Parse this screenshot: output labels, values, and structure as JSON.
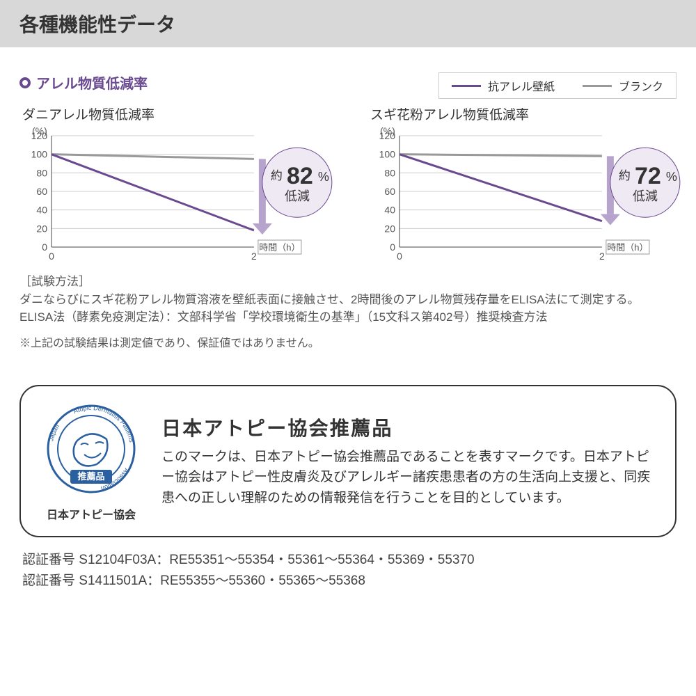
{
  "header": {
    "title": "各種機能性データ"
  },
  "section": {
    "title": "アレル物質低減率",
    "title_color": "#6a4a8f"
  },
  "legend": {
    "series1": {
      "label": "抗アレル壁紙",
      "color": "#6a4a8f"
    },
    "series2": {
      "label": "ブランク",
      "color": "#999999"
    }
  },
  "charts": [
    {
      "title": "ダニアレル物質低減率",
      "y_unit": "(%)",
      "x_unit_label": "時間（h）",
      "ylim": [
        0,
        120
      ],
      "ytick_step": 20,
      "yticks": [
        0,
        20,
        40,
        60,
        80,
        100,
        120
      ],
      "xticks": [
        0,
        2
      ],
      "series": [
        {
          "name": "blank",
          "color": "#999999",
          "points": [
            [
              0,
              100
            ],
            [
              2,
              95
            ]
          ]
        },
        {
          "name": "treated",
          "color": "#6a4a8f",
          "points": [
            [
              0,
              100
            ],
            [
              2,
              18
            ]
          ]
        }
      ],
      "reduction_badge": {
        "prefix": "約",
        "value": "82",
        "unit": "%",
        "sub": "低減",
        "circle_fill": "#efe9f4",
        "circle_stroke": "#6a4a8f",
        "arrow_color": "#b7a4cc"
      },
      "gridline_color": "#cccccc",
      "axis_color": "#444444",
      "tick_fontsize": 14
    },
    {
      "title": "スギ花粉アレル物質低減率",
      "y_unit": "(%)",
      "x_unit_label": "時間（h）",
      "ylim": [
        0,
        120
      ],
      "ytick_step": 20,
      "yticks": [
        0,
        20,
        40,
        60,
        80,
        100,
        120
      ],
      "xticks": [
        0,
        2
      ],
      "series": [
        {
          "name": "blank",
          "color": "#999999",
          "points": [
            [
              0,
              100
            ],
            [
              2,
              98
            ]
          ]
        },
        {
          "name": "treated",
          "color": "#6a4a8f",
          "points": [
            [
              0,
              100
            ],
            [
              2,
              28
            ]
          ]
        }
      ],
      "reduction_badge": {
        "prefix": "約",
        "value": "72",
        "unit": "%",
        "sub": "低減",
        "circle_fill": "#efe9f4",
        "circle_stroke": "#6a4a8f",
        "arrow_color": "#b7a4cc"
      },
      "gridline_color": "#cccccc",
      "axis_color": "#444444",
      "tick_fontsize": 14
    }
  ],
  "test_method": {
    "label": "［試験方法］",
    "line1": "ダニならびにスギ花粉アレル物質溶液を壁紙表面に接触させ、2時間後のアレル物質残存量をELISA法にて測定する。",
    "line2": "ELISA法（酵素免疫測定法）：文部科学省「学校環境衛生の基準」（15文科ス第402号）推奨検査方法"
  },
  "disclaimer": "※上記の試験結果は測定値であり、保証値ではありません。",
  "association": {
    "title": "日本アトピー協会推薦品",
    "body": "このマークは、日本アトピー協会推薦品であることを表すマークです。日本アトピー協会はアトピー性皮膚炎及びアレルギー諸疾患患者の方の生活向上支援と、同疾患への正しい理解のための情報発信を行うことを目的としています。",
    "logo": {
      "badge_text": "推薦品",
      "ring_text_top": "Atopic Dermatitis Patients",
      "ring_text_left": "Japan",
      "ring_text_right": "Association",
      "color": "#2a5fa0",
      "caption": "日本アトピー協会"
    }
  },
  "certifications": {
    "line1": "認証番号 S12104F03A：RE55351〜55354・55361〜55364・55369・55370",
    "line2": "認証番号 S1411501A：RE55355〜55360・55365〜55368"
  },
  "colors": {
    "header_bg": "#d8d8d8",
    "text": "#333333",
    "purple": "#6a4a8f",
    "gray": "#999999",
    "box_border": "#333333"
  }
}
